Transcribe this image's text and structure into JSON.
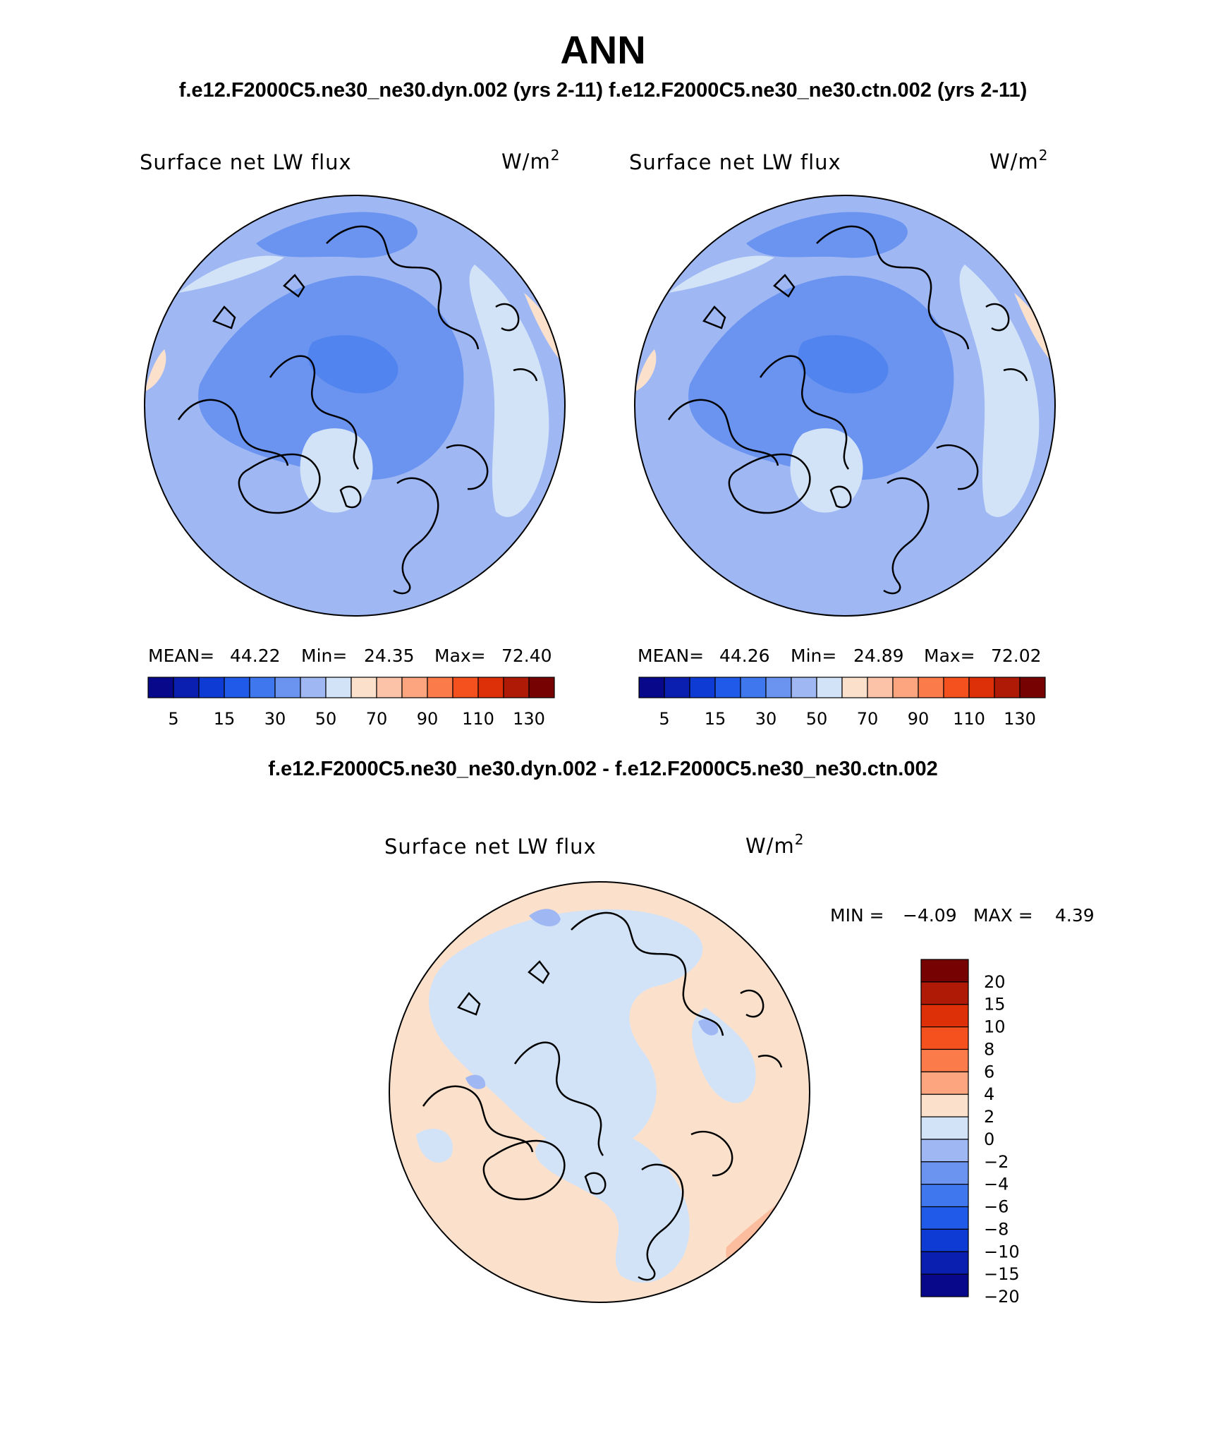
{
  "header": {
    "title": "ANN",
    "cases_line": "f.e12.F2000C5.ne30_ne30.dyn.002 (yrs 2-11)  f.e12.F2000C5.ne30_ne30.ctn.002 (yrs 2-11)",
    "diff_line": "f.e12.F2000C5.ne30_ne30.dyn.002 - f.e12.F2000C5.ne30_ne30.ctn.002"
  },
  "panels": [
    {
      "variable": "Surface net LW flux",
      "units_base": "W/m",
      "units_exp": "2",
      "stats": {
        "mean_label": "MEAN=",
        "mean": "44.22",
        "min_label": "Min=",
        "min": "24.35",
        "max_label": "Max=",
        "max": "72.40"
      }
    },
    {
      "variable": "Surface net LW flux",
      "units_base": "W/m",
      "units_exp": "2",
      "stats": {
        "mean_label": "MEAN=",
        "mean": "44.26",
        "min_label": "Min=",
        "min": "24.89",
        "max_label": "Max=",
        "max": "72.02"
      }
    }
  ],
  "diff_panel": {
    "variable": "Surface net LW flux",
    "units_base": "W/m",
    "units_exp": "2",
    "min_label": "MIN =",
    "min": "−4.09",
    "max_label": "MAX =",
    "max": "4.39"
  },
  "colorbar_abs": {
    "colors": [
      "#08088a",
      "#0a1fb0",
      "#0e3bd4",
      "#1f5ae8",
      "#3e77ee",
      "#6a94f0",
      "#9fb8f4",
      "#d2e3f8",
      "#fbe1cc",
      "#fcc3a8",
      "#fca57f",
      "#fb7c4a",
      "#f4511e",
      "#de3008",
      "#ae1a06",
      "#770202"
    ],
    "tick_labels": [
      "5",
      "15",
      "30",
      "50",
      "70",
      "90",
      "110",
      "130"
    ]
  },
  "colorbar_diff": {
    "colors": [
      "#770202",
      "#ae1a06",
      "#de3008",
      "#f4511e",
      "#fb7c4a",
      "#fca57f",
      "#fbe1cc",
      "#d2e3f8",
      "#9fb8f4",
      "#6a94f0",
      "#3e77ee",
      "#1f5ae8",
      "#0e3bd4",
      "#0a1fb0",
      "#08088a"
    ],
    "tick_labels": [
      "20",
      "15",
      "10",
      "8",
      "6",
      "4",
      "2",
      "0",
      "−2",
      "−4",
      "−6",
      "−8",
      "−10",
      "−15",
      "−20"
    ]
  },
  "map_colors": {
    "absolute": [
      "#9fb8f4",
      "#6a94f0",
      "#3e77ee",
      "#d2e3f8",
      "#fbe1cc"
    ],
    "difference": [
      "#fbe1cc",
      "#d2e3f8",
      "#9fb8f4",
      "#fca57f"
    ]
  }
}
